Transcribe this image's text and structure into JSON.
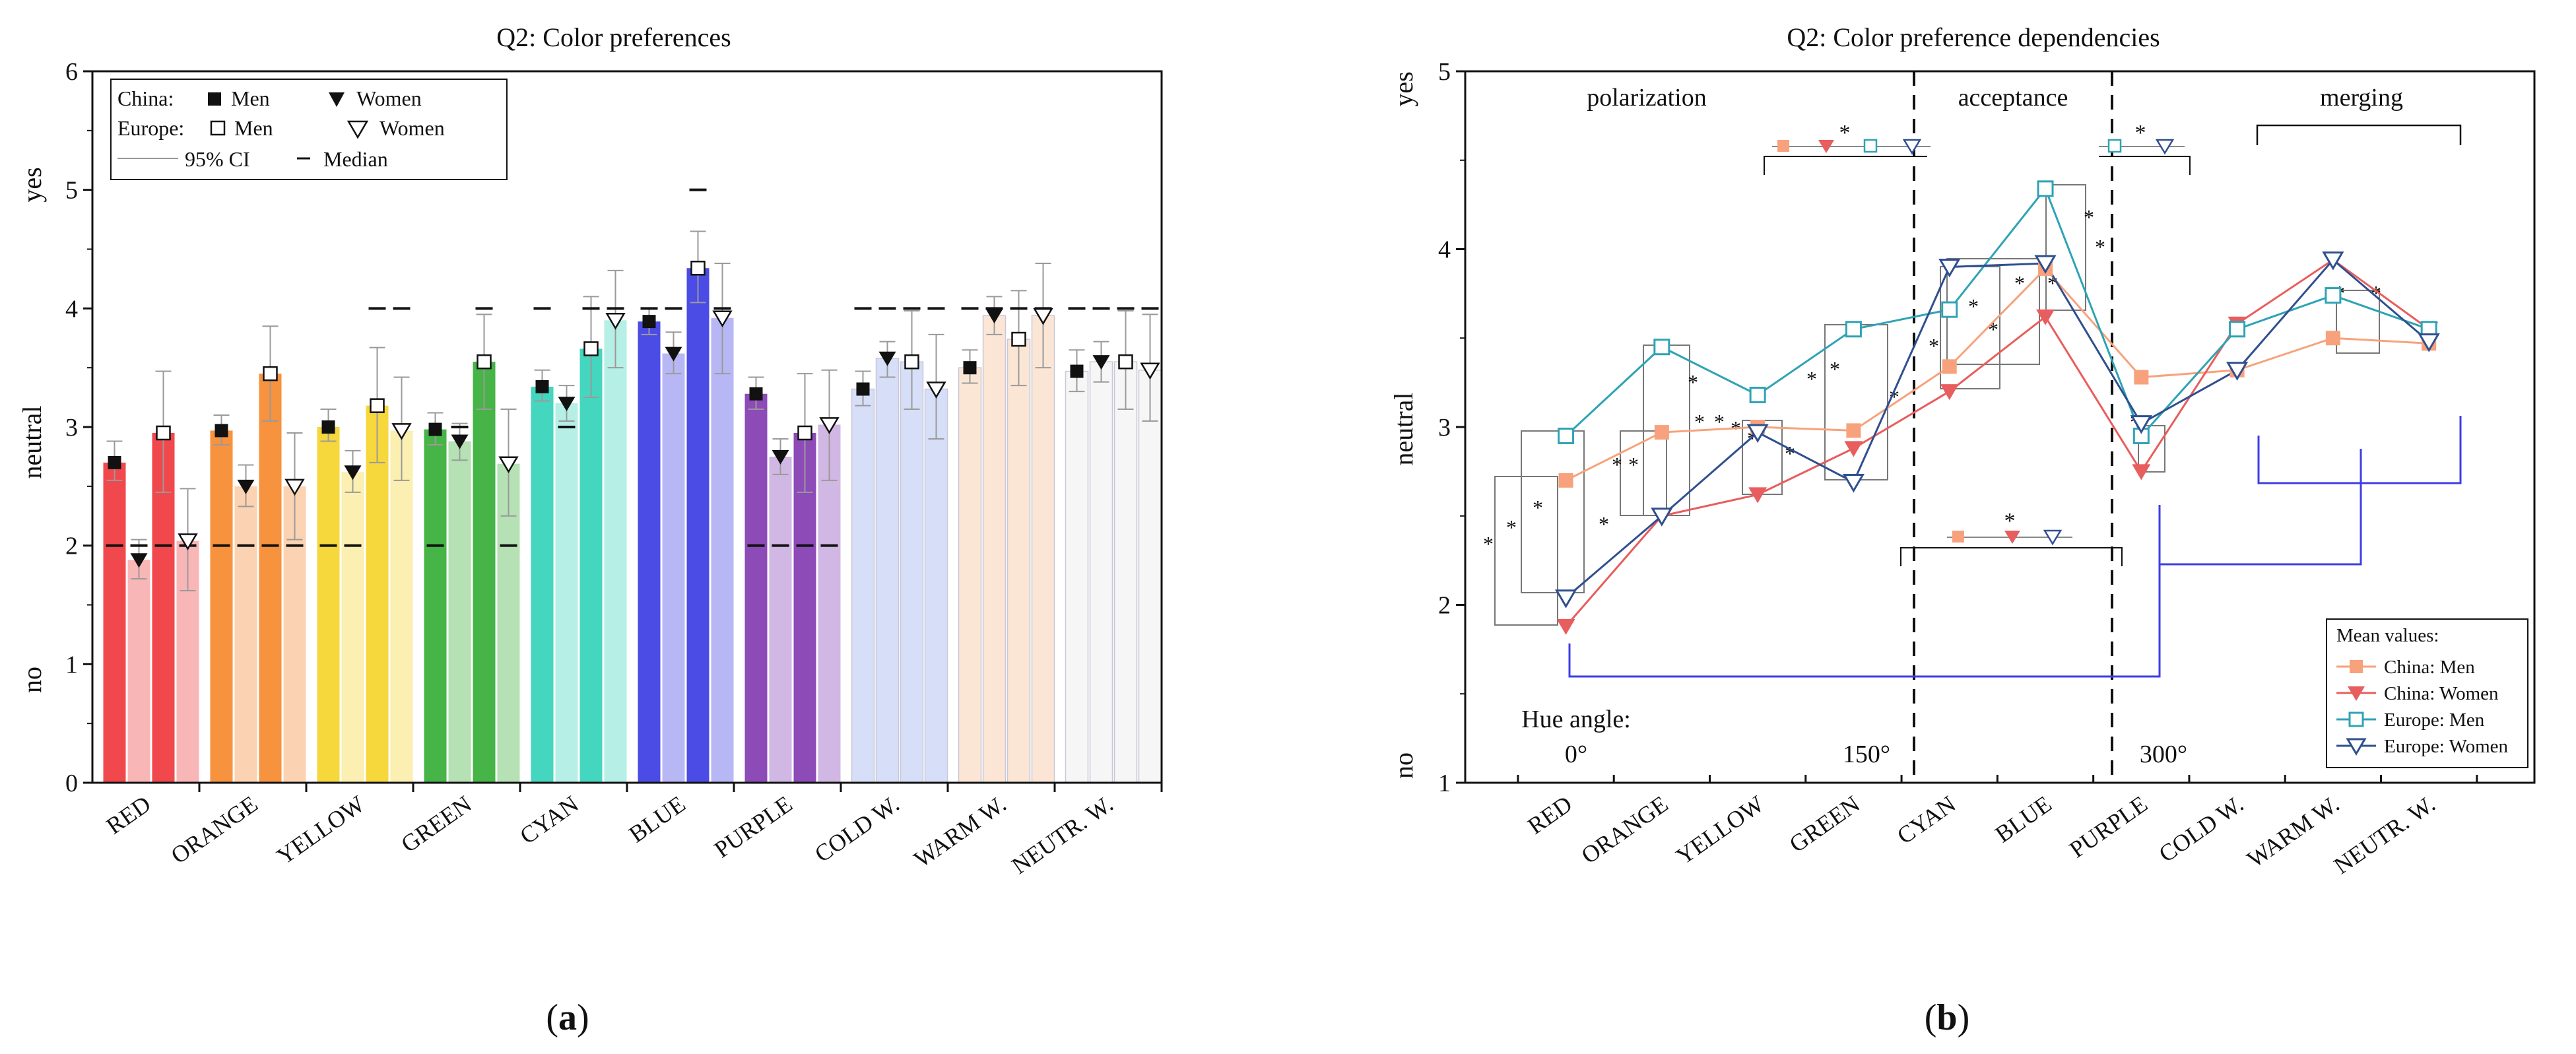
{
  "categories": [
    "RED",
    "ORANGE",
    "YELLOW",
    "GREEN",
    "CYAN",
    "BLUE",
    "PURPLE",
    "COLD W.",
    "WARM W.",
    "NEUTR. W."
  ],
  "bar_colors": [
    "#f0484c",
    "#f7923e",
    "#f6d73c",
    "#46b446",
    "#45d6bf",
    "#4b4be6",
    "#8d4bb8",
    "#d7def7",
    "#fbe6d6",
    "#f6f6f6"
  ],
  "panel_a": {
    "panel_label": "a",
    "legend": {
      "china_label": "China:",
      "europe_label": "Europe:",
      "men_label": "Men",
      "women_label": "Women",
      "ci_label": "95% CI",
      "median_label": "Median"
    }
  },
  "panel_b": {
    "panel_label": "b",
    "regions": [
      "polarization",
      "acceptance",
      "merging"
    ],
    "hue_label": "Hue angle:",
    "hue_ticks": [
      "0°",
      "150°",
      "300°"
    ],
    "star": "*",
    "legend": {
      "title": "Mean values:",
      "items": [
        "China: Men",
        "China: Women",
        "Europe: Men",
        "Europe: Women"
      ]
    }
  },
  "chart_data": [
    {
      "type": "bar",
      "title": "Q2: Color preferences",
      "xlabel": "",
      "ylabel": "",
      "ylim": [
        0,
        6
      ],
      "yticks": [
        "0",
        "1",
        "2",
        "3",
        "4",
        "5",
        "6"
      ],
      "y_annotations": [
        "no",
        "neutral",
        "yes"
      ],
      "categories": [
        "RED",
        "ORANGE",
        "YELLOW",
        "GREEN",
        "CYAN",
        "BLUE",
        "PURPLE",
        "COLD W.",
        "WARM W.",
        "NEUTR. W."
      ],
      "series": [
        {
          "name": "China: Men",
          "values": [
            2.7,
            2.97,
            3.0,
            2.98,
            3.34,
            3.89,
            3.28,
            3.32,
            3.5,
            3.47
          ],
          "ci_low": [
            2.55,
            2.85,
            2.88,
            2.85,
            3.22,
            3.78,
            3.15,
            3.18,
            3.37,
            3.3
          ],
          "ci_high": [
            2.88,
            3.1,
            3.15,
            3.12,
            3.48,
            4.0,
            3.42,
            3.47,
            3.65,
            3.65
          ],
          "median": [
            2.0,
            2.0,
            2.0,
            2.0,
            4.0,
            4.0,
            2.0,
            4.0,
            4.0,
            4.0
          ]
        },
        {
          "name": "China: Women",
          "values": [
            1.88,
            2.5,
            2.62,
            2.88,
            3.2,
            3.62,
            2.75,
            3.58,
            3.94,
            3.55
          ],
          "ci_low": [
            1.72,
            2.33,
            2.45,
            2.72,
            3.05,
            3.45,
            2.6,
            3.42,
            3.78,
            3.38
          ],
          "ci_high": [
            2.05,
            2.68,
            2.8,
            3.03,
            3.35,
            3.8,
            2.9,
            3.72,
            4.1,
            3.72
          ],
          "median": [
            2.0,
            2.0,
            2.0,
            3.0,
            3.0,
            4.0,
            2.0,
            4.0,
            4.0,
            4.0
          ]
        },
        {
          "name": "Europe: Men",
          "values": [
            2.95,
            3.45,
            3.18,
            3.55,
            3.66,
            4.34,
            2.95,
            3.55,
            3.74,
            3.55
          ],
          "ci_low": [
            2.45,
            3.05,
            2.7,
            3.15,
            3.25,
            4.05,
            2.45,
            3.15,
            3.35,
            3.15
          ],
          "ci_high": [
            3.47,
            3.85,
            3.67,
            3.95,
            4.1,
            4.65,
            3.45,
            3.98,
            4.15,
            3.98
          ],
          "median": [
            2.0,
            2.0,
            4.0,
            4.0,
            4.0,
            5.0,
            2.0,
            4.0,
            4.0,
            4.0
          ]
        },
        {
          "name": "Europe: Women",
          "values": [
            2.04,
            2.5,
            2.97,
            2.69,
            3.9,
            3.92,
            3.02,
            3.32,
            3.94,
            3.48
          ],
          "ci_low": [
            1.62,
            2.05,
            2.55,
            2.25,
            3.5,
            3.45,
            2.55,
            2.9,
            3.5,
            3.05
          ],
          "ci_high": [
            2.48,
            2.95,
            3.42,
            3.15,
            4.32,
            4.38,
            3.48,
            3.78,
            4.38,
            3.95
          ],
          "median": [
            2.0,
            2.0,
            4.0,
            2.0,
            4.0,
            4.0,
            2.0,
            4.0,
            4.0,
            4.0
          ]
        }
      ]
    },
    {
      "type": "line",
      "title": "Q2: Color preference dependencies",
      "xlabel": "",
      "ylabel": "",
      "ylim": [
        1,
        5
      ],
      "yticks": [
        "1",
        "2",
        "3",
        "4",
        "5"
      ],
      "y_annotations": [
        "no",
        "neutral",
        "yes"
      ],
      "categories": [
        "RED",
        "ORANGE",
        "YELLOW",
        "GREEN",
        "CYAN",
        "BLUE",
        "PURPLE",
        "COLD W.",
        "WARM W.",
        "NEUTR. W."
      ],
      "series": [
        {
          "name": "China: Men",
          "color": "#f7a27c",
          "marker": "square-filled",
          "values": [
            2.7,
            2.97,
            3.0,
            2.98,
            3.34,
            3.89,
            3.28,
            3.32,
            3.5,
            3.47
          ]
        },
        {
          "name": "China: Women",
          "color": "#e85d5d",
          "marker": "triangle-down-filled",
          "values": [
            1.88,
            2.5,
            2.62,
            2.88,
            3.2,
            3.62,
            2.75,
            3.58,
            3.94,
            3.55
          ]
        },
        {
          "name": "Europe: Men",
          "color": "#2ea3b5",
          "marker": "square-open",
          "values": [
            2.95,
            3.45,
            3.18,
            3.55,
            3.66,
            4.34,
            2.95,
            3.55,
            3.74,
            3.55
          ]
        },
        {
          "name": "Europe: Women",
          "color": "#2f4f8f",
          "marker": "triangle-down-open",
          "values": [
            2.04,
            2.5,
            2.97,
            2.69,
            3.9,
            3.92,
            3.02,
            3.32,
            3.94,
            3.48
          ]
        }
      ]
    }
  ]
}
